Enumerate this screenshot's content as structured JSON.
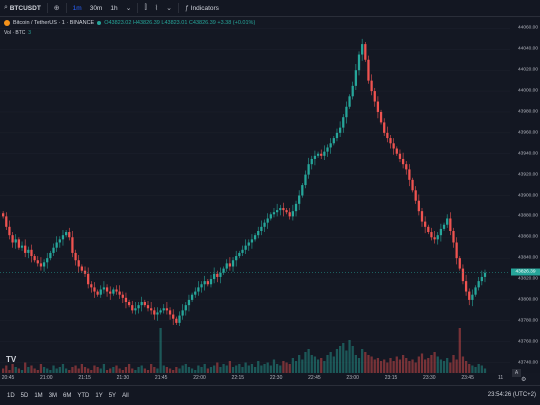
{
  "toolbar": {
    "symbol": "BTCUSDT",
    "intervals": [
      "1m",
      "30m",
      "1h"
    ],
    "active_interval": "1m",
    "indicators_label": "Indicators",
    "icons": [
      "search-icon",
      "add-symbol-icon",
      "candle-type-icon",
      "compare-icon",
      "indicators-icon"
    ]
  },
  "legend": {
    "title": "Bitcoin / TetherUS · 1 · BINANCE",
    "ohlc": "O43823.02 H43826.39 L43823.01 C43826.39 +3.38 (+0.01%)",
    "volume_label": "Vol · BTC",
    "volume_value": "3"
  },
  "price_axis": {
    "ticks": [
      "44060.00",
      "44040.00",
      "44020.00",
      "44000.00",
      "43980.00",
      "43960.00",
      "43940.00",
      "43920.00",
      "43900.00",
      "43880.00",
      "43860.00",
      "43840.00",
      "43820.00",
      "43800.00",
      "43780.00",
      "43760.00",
      "43740.00"
    ],
    "current_price": "43826.39"
  },
  "time_axis": {
    "ticks": [
      "20:45",
      "21:00",
      "21:15",
      "21:30",
      "21:45",
      "22:00",
      "22:15",
      "22:30",
      "22:45",
      "23:00",
      "23:15",
      "23:30",
      "23:45"
    ],
    "extra": "11"
  },
  "bottom_bar": {
    "ranges": [
      "1D",
      "5D",
      "1M",
      "3M",
      "6M",
      "YTD",
      "1Y",
      "5Y",
      "All"
    ],
    "time_status": "23:54:26 (UTC+2)"
  },
  "colors": {
    "up": "#26a69a",
    "down": "#ef5350",
    "background": "#141823",
    "accent": "#2962ff"
  },
  "chart_data": {
    "type": "candlestick",
    "ylim": [
      43730,
      44070
    ],
    "closes": [
      43880,
      43870,
      43862,
      43855,
      43858,
      43850,
      43852,
      43845,
      43848,
      43842,
      43838,
      43835,
      43832,
      43836,
      43840,
      43845,
      43850,
      43855,
      43858,
      43862,
      43865,
      43860,
      43845,
      43838,
      43832,
      43828,
      43825,
      43815,
      43812,
      43808,
      43805,
      43810,
      43812,
      43808,
      43806,
      43810,
      43808,
      43805,
      43802,
      43798,
      43795,
      43790,
      43792,
      43795,
      43798,
      43795,
      43792,
      43790,
      43786,
      43788,
      43790,
      43792,
      43790,
      43786,
      43782,
      43778,
      43785,
      43790,
      43795,
      43800,
      43805,
      43808,
      43812,
      43815,
      43818,
      43815,
      43820,
      43825,
      43822,
      43826,
      43830,
      43835,
      43832,
      43838,
      43842,
      43845,
      43848,
      43852,
      43855,
      43858,
      43862,
      43866,
      43870,
      43874,
      43878,
      43882,
      43884,
      43886,
      43888,
      43886,
      43884,
      43880,
      43885,
      43892,
      43900,
      43910,
      43920,
      43930,
      43935,
      43938,
      43940,
      43938,
      43942,
      43946,
      43950,
      43955,
      43960,
      43965,
      43975,
      43985,
      43995,
      44005,
      44020,
      44035,
      44045,
      44030,
      44010,
      44000,
      43990,
      43980,
      43970,
      43960,
      43955,
      43950,
      43945,
      43940,
      43935,
      43930,
      43925,
      43915,
      43905,
      43895,
      43885,
      43875,
      43870,
      43865,
      43860,
      43858,
      43862,
      43868,
      43872,
      43878,
      43866,
      43855,
      43840,
      43830,
      43818,
      43808,
      43800,
      43805,
      43812,
      43818,
      43822,
      43826
    ],
    "volumes": [
      3,
      5,
      2,
      6,
      4,
      3,
      2,
      7,
      4,
      5,
      3,
      2,
      6,
      4,
      3,
      2,
      5,
      3,
      4,
      6,
      3,
      2,
      4,
      5,
      3,
      6,
      4,
      3,
      2,
      5,
      4,
      3,
      6,
      2,
      3,
      4,
      5,
      3,
      2,
      4,
      6,
      3,
      2,
      4,
      5,
      3,
      2,
      6,
      4,
      3,
      30,
      5,
      4,
      3,
      2,
      4,
      3,
      5,
      6,
      4,
      3,
      2,
      5,
      4,
      6,
      3,
      4,
      5,
      7,
      4,
      6,
      5,
      8,
      4,
      5,
      6,
      4,
      7,
      5,
      6,
      4,
      8,
      5,
      6,
      7,
      5,
      9,
      6,
      5,
      8,
      7,
      6,
      10,
      8,
      12,
      9,
      14,
      16,
      12,
      11,
      9,
      10,
      8,
      12,
      14,
      11,
      16,
      18,
      20,
      15,
      22,
      18,
      12,
      10,
      16,
      14,
      12,
      11,
      9,
      10,
      8,
      9,
      7,
      10,
      8,
      11,
      9,
      12,
      10,
      8,
      9,
      7,
      11,
      13,
      9,
      10,
      12,
      14,
      11,
      9,
      8,
      10,
      7,
      12,
      9,
      30,
      11,
      8,
      6,
      5,
      4,
      6,
      5,
      3
    ]
  }
}
